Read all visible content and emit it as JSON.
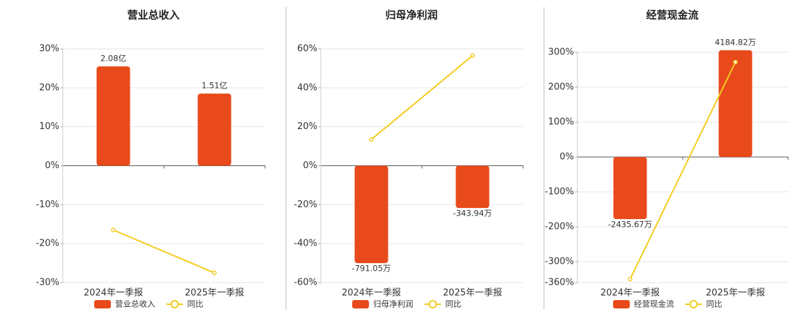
{
  "chart_data": [
    {
      "type": "combo",
      "title": "营业总收入",
      "categories": [
        "2024年一季报",
        "2025年一季报"
      ],
      "series": [
        {
          "name": "营业总收入",
          "type": "bar",
          "color": "#e84a1c",
          "axis": "y2",
          "values": [
            2.08,
            1.51
          ],
          "value_labels": [
            "2.08亿",
            "1.51亿"
          ]
        },
        {
          "name": "同比",
          "type": "line",
          "color": "#f2cb1d",
          "values": [
            -16.5,
            -27.5
          ]
        }
      ],
      "ylim": [
        -30,
        30
      ],
      "yticks": [
        {
          "value": 30,
          "label": "30%"
        },
        {
          "value": 20,
          "label": "20%"
        },
        {
          "value": 10,
          "label": "10%"
        },
        {
          "value": 0,
          "label": "0%"
        },
        {
          "value": -10,
          "label": "-10%"
        },
        {
          "value": -20,
          "label": "-20%"
        },
        {
          "value": -30,
          "label": "-30%"
        }
      ],
      "y2lim": [
        -2.447,
        2.447
      ],
      "grid": true,
      "legend": "bottom"
    },
    {
      "type": "combo",
      "title": "归母净利润",
      "categories": [
        "2024年一季报",
        "2025年一季报"
      ],
      "series": [
        {
          "name": "归母净利润",
          "type": "bar",
          "color": "#e84a1c",
          "axis": "y2",
          "values": [
            -791.05,
            -343.94
          ],
          "value_labels": [
            "-791.05万",
            "-343.94万"
          ]
        },
        {
          "name": "同比",
          "type": "line",
          "color": "#f2cb1d",
          "values": [
            13.5,
            56.5
          ]
        }
      ],
      "ylim": [
        -60,
        60
      ],
      "yticks": [
        {
          "value": 60,
          "label": "60%"
        },
        {
          "value": 40,
          "label": "40%"
        },
        {
          "value": 20,
          "label": "20%"
        },
        {
          "value": 0,
          "label": "0%"
        },
        {
          "value": -20,
          "label": "-20%"
        },
        {
          "value": -40,
          "label": "-40%"
        },
        {
          "value": -60,
          "label": "-60%"
        }
      ],
      "y2lim": [
        -949.3,
        949.3
      ],
      "grid": true,
      "legend": "bottom"
    },
    {
      "type": "combo",
      "title": "经营现金流",
      "categories": [
        "2024年一季报",
        "2025年一季报"
      ],
      "series": [
        {
          "name": "经营现金流",
          "type": "bar",
          "color": "#e84a1c",
          "axis": "y2",
          "values": [
            -2435.67,
            4184.82
          ],
          "value_labels": [
            "-2435.67万",
            "4184.82万"
          ]
        },
        {
          "name": "同比",
          "type": "line",
          "color": "#f2cb1d",
          "values": [
            -350,
            272
          ]
        }
      ],
      "ylim": [
        -360,
        300
      ],
      "yticks": [
        {
          "value": 300,
          "label": "300%"
        },
        {
          "value": 200,
          "label": "200%"
        },
        {
          "value": 100,
          "label": "100%"
        },
        {
          "value": 0,
          "label": "0%"
        },
        {
          "value": -100,
          "label": "-100%"
        },
        {
          "value": -200,
          "label": "-200%"
        },
        {
          "value": -300,
          "label": "-300%"
        },
        {
          "value": -360,
          "label": "-360%"
        }
      ],
      "y2lim": [
        -4923,
        4103
      ],
      "grid": true,
      "legend": "bottom"
    }
  ]
}
